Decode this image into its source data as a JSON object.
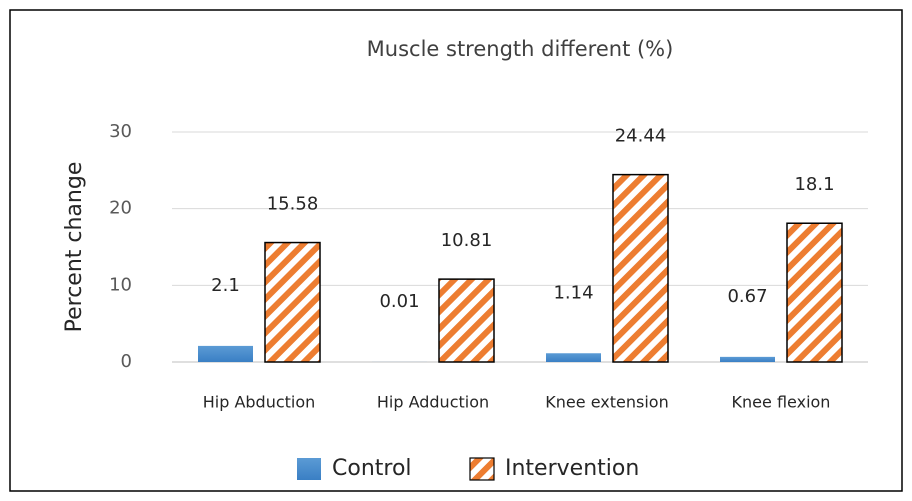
{
  "chart_data": {
    "type": "bar",
    "title": "Muscle strength different (%)",
    "y_label": "Percent change",
    "categories": [
      "Hip Abduction",
      "Hip Adduction",
      "Knee extension",
      "Knee flexion"
    ],
    "series": [
      {
        "name": "Control",
        "color": "#5b9bd5",
        "values": [
          2.1,
          0.01,
          1.14,
          0.67
        ]
      },
      {
        "name": "Intervention",
        "color": "#ed7d31",
        "pattern": "diagonal-stripes",
        "values": [
          15.58,
          10.81,
          24.44,
          18.1
        ]
      }
    ],
    "ylim": [
      0,
      30
    ],
    "yticks": [
      0,
      10,
      20,
      30
    ],
    "grid": true,
    "legend": "bottom"
  }
}
